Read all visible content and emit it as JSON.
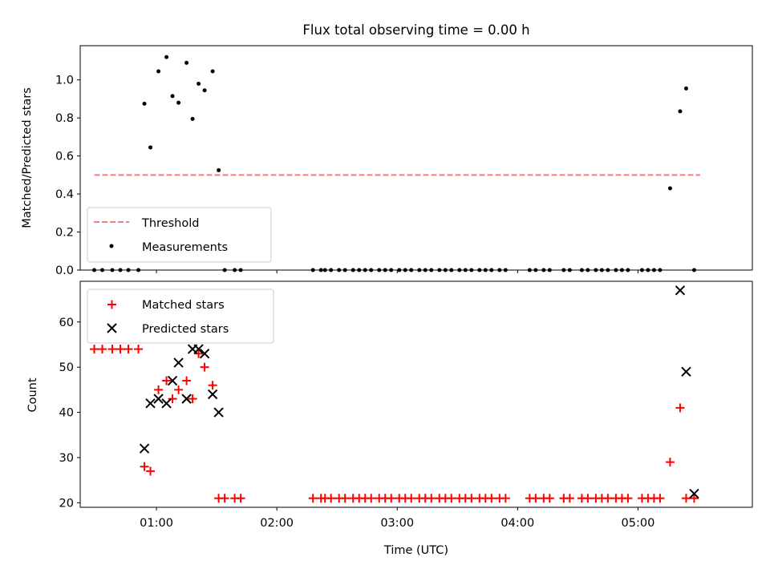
{
  "figure": {
    "title": "Flux total observing time = 0.00 h",
    "xlabel": "Time (UTC)"
  },
  "colors": {
    "threshold": "#f08080",
    "measurements": "#000000",
    "matched": "#ff0000",
    "predicted": "#000000"
  },
  "legend_top": {
    "threshold_label": "Threshold",
    "measurements_label": "Measurements"
  },
  "legend_bottom": {
    "matched_label": "Matched stars",
    "predicted_label": "Predicted stars"
  },
  "chart_data": [
    {
      "type": "scatter",
      "title": "Flux total observing time = 0.00 h",
      "xlabel": "",
      "ylabel": "Matched/Predicted stars",
      "xlim": [
        "00:22",
        "05:57"
      ],
      "ylim": [
        0,
        1.18
      ],
      "yticks": [
        0.0,
        0.2,
        0.4,
        0.6,
        0.8,
        1.0
      ],
      "yticklabels": [
        "0.0",
        "0.2",
        "0.4",
        "0.6",
        "0.8",
        "1.0"
      ],
      "xticks": [
        "01:00",
        "02:00",
        "03:00",
        "04:00",
        "05:00"
      ],
      "grid": false,
      "legend": "lower-left",
      "threshold": {
        "name": "Threshold",
        "x": [
          "00:29",
          "05:31"
        ],
        "y": 0.5,
        "style": "dashed"
      },
      "series": [
        {
          "name": "Measurements",
          "x": [
            "00:29",
            "00:33",
            "00:38",
            "00:42",
            "00:46",
            "00:51",
            "00:54",
            "00:57",
            "01:01",
            "01:05",
            "01:08",
            "01:11",
            "01:15",
            "01:18",
            "01:21",
            "01:24",
            "01:28",
            "01:31",
            "01:34",
            "01:39",
            "01:42",
            "02:18",
            "02:22",
            "02:24",
            "02:27",
            "02:31",
            "02:34",
            "02:38",
            "02:41",
            "02:44",
            "02:47",
            "02:51",
            "02:54",
            "02:57",
            "03:01",
            "03:04",
            "03:07",
            "03:11",
            "03:14",
            "03:17",
            "03:21",
            "03:24",
            "03:27",
            "03:31",
            "03:34",
            "03:37",
            "03:41",
            "03:44",
            "03:47",
            "03:51",
            "03:54",
            "04:06",
            "04:09",
            "04:13",
            "04:16",
            "04:23",
            "04:26",
            "04:32",
            "04:35",
            "04:39",
            "04:42",
            "04:45",
            "04:49",
            "04:52",
            "04:55",
            "05:02",
            "05:05",
            "05:08",
            "05:11",
            "05:16",
            "05:21",
            "05:24",
            "05:28"
          ],
          "y": [
            0,
            0,
            0,
            0,
            0,
            0,
            0.875,
            0.645,
            1.045,
            1.12,
            0.915,
            0.88,
            1.09,
            0.795,
            0.98,
            0.945,
            1.045,
            0.525,
            0,
            0,
            0,
            0,
            0,
            0,
            0,
            0,
            0,
            0,
            0,
            0,
            0,
            0,
            0,
            0,
            0,
            0,
            0,
            0,
            0,
            0,
            0,
            0,
            0,
            0,
            0,
            0,
            0,
            0,
            0,
            0,
            0,
            0,
            0,
            0,
            0,
            0,
            0,
            0,
            0,
            0,
            0,
            0,
            0,
            0,
            0,
            0,
            0,
            0,
            0,
            0.43,
            0.835,
            0.955,
            0
          ]
        }
      ]
    },
    {
      "type": "scatter",
      "title": "",
      "xlabel": "Time (UTC)",
      "ylabel": "Count",
      "xlim": [
        "00:22",
        "05:57"
      ],
      "ylim": [
        19,
        69
      ],
      "yticks": [
        20,
        30,
        40,
        50,
        60
      ],
      "yticklabels": [
        "20",
        "30",
        "40",
        "50",
        "60"
      ],
      "xticks": [
        "01:00",
        "02:00",
        "03:00",
        "04:00",
        "05:00"
      ],
      "xticklabels": [
        "01:00",
        "02:00",
        "03:00",
        "04:00",
        "05:00"
      ],
      "grid": false,
      "legend": "upper-left",
      "series": [
        {
          "name": "Matched stars",
          "marker": "plus",
          "x": [
            "00:29",
            "00:33",
            "00:38",
            "00:42",
            "00:46",
            "00:51",
            "00:54",
            "00:57",
            "01:01",
            "01:05",
            "01:08",
            "01:11",
            "01:15",
            "01:18",
            "01:21",
            "01:24",
            "01:28",
            "01:31",
            "01:34",
            "01:39",
            "01:42",
            "02:18",
            "02:22",
            "02:24",
            "02:27",
            "02:31",
            "02:34",
            "02:38",
            "02:41",
            "02:44",
            "02:47",
            "02:51",
            "02:54",
            "02:57",
            "03:01",
            "03:04",
            "03:07",
            "03:11",
            "03:14",
            "03:17",
            "03:21",
            "03:24",
            "03:27",
            "03:31",
            "03:34",
            "03:37",
            "03:41",
            "03:44",
            "03:47",
            "03:51",
            "03:54",
            "04:06",
            "04:09",
            "04:13",
            "04:16",
            "04:23",
            "04:26",
            "04:32",
            "04:35",
            "04:39",
            "04:42",
            "04:45",
            "04:49",
            "04:52",
            "04:55",
            "05:02",
            "05:05",
            "05:08",
            "05:11",
            "05:16",
            "05:21",
            "05:24",
            "05:28"
          ],
          "y": [
            54,
            54,
            54,
            54,
            54,
            54,
            28,
            27,
            45,
            47,
            43,
            45,
            47,
            43,
            53,
            50,
            46,
            21,
            21,
            21,
            21,
            21,
            21,
            21,
            21,
            21,
            21,
            21,
            21,
            21,
            21,
            21,
            21,
            21,
            21,
            21,
            21,
            21,
            21,
            21,
            21,
            21,
            21,
            21,
            21,
            21,
            21,
            21,
            21,
            21,
            21,
            21,
            21,
            21,
            21,
            21,
            21,
            21,
            21,
            21,
            21,
            21,
            21,
            21,
            21,
            21,
            21,
            21,
            21,
            29,
            41,
            21,
            21
          ]
        },
        {
          "name": "Predicted stars",
          "marker": "x",
          "x": [
            "00:54",
            "00:57",
            "01:01",
            "01:05",
            "01:08",
            "01:11",
            "01:15",
            "01:18",
            "01:21",
            "01:24",
            "01:28",
            "01:31",
            "05:21",
            "05:24",
            "05:28"
          ],
          "y": [
            32,
            42,
            43,
            42,
            47,
            51,
            43,
            54,
            54,
            53,
            44,
            40,
            67,
            49,
            22
          ]
        }
      ]
    }
  ]
}
